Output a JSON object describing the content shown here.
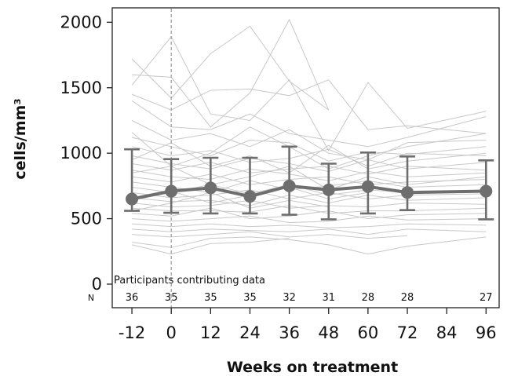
{
  "chart_data": {
    "type": "line",
    "xlabel": "Weeks on treatment",
    "ylabel": "cells/mm³",
    "xlim": [
      -18,
      100
    ],
    "ylim": [
      -180,
      2110
    ],
    "x_ticks": [
      -12,
      0,
      12,
      24,
      36,
      48,
      60,
      72,
      84,
      96
    ],
    "x_tick_labels": [
      "-12",
      "0",
      "12",
      "24",
      "36",
      "48",
      "60",
      "72",
      "84",
      "96"
    ],
    "y_ticks": [
      0,
      500,
      1000,
      1500,
      2000
    ],
    "y_tick_labels": [
      "0",
      "500",
      "1000",
      "1500",
      "2000"
    ],
    "reference_line_x": 0,
    "colors": {
      "mean": "#6e6e6e",
      "individual": "#c8c8c8",
      "reference": "#999999",
      "axis": "#222222"
    },
    "mean_series": {
      "x": [
        -12,
        0,
        12,
        24,
        36,
        48,
        60,
        72,
        96
      ],
      "y": [
        650,
        710,
        735,
        670,
        750,
        720,
        745,
        700,
        710
      ],
      "lower": [
        560,
        545,
        540,
        540,
        530,
        495,
        540,
        565,
        495
      ],
      "upper": [
        1030,
        955,
        965,
        965,
        1050,
        920,
        1005,
        975,
        945
      ]
    },
    "individual_series": [
      {
        "x": [
          -12,
          0,
          12,
          24,
          36,
          48
        ],
        "y": [
          1720,
          1420,
          1760,
          1970,
          1550,
          1330
        ]
      },
      {
        "x": [
          -12,
          0,
          12,
          24,
          36,
          48
        ],
        "y": [
          1600,
          1580,
          1200,
          1460,
          2020,
          1330
        ]
      },
      {
        "x": [
          -12,
          0,
          12,
          24,
          36,
          48,
          60,
          72,
          96
        ],
        "y": [
          1520,
          1890,
          1300,
          1250,
          1560,
          1020,
          1540,
          1190,
          1320
        ]
      },
      {
        "x": [
          -12,
          0,
          12,
          24,
          36,
          48,
          60,
          72,
          96
        ],
        "y": [
          1450,
          1330,
          1480,
          1490,
          1440,
          1560,
          1180,
          1210,
          1150
        ]
      },
      {
        "x": [
          -12,
          0,
          12,
          24,
          36,
          48,
          60,
          72,
          96
        ],
        "y": [
          1400,
          1200,
          1180,
          1300,
          1150,
          1100,
          1050,
          1120,
          1280
        ]
      },
      {
        "x": [
          -12,
          0,
          12,
          24,
          36,
          48,
          60,
          72,
          96
        ],
        "y": [
          1250,
          1100,
          1150,
          1050,
          1180,
          1000,
          950,
          1080,
          1100
        ]
      },
      {
        "x": [
          -12,
          0,
          12,
          24,
          36,
          48,
          60,
          72,
          96
        ],
        "y": [
          1120,
          1050,
          980,
          1100,
          1080,
          940,
          1010,
          990,
          1050
        ]
      },
      {
        "x": [
          -12,
          0,
          12,
          24,
          36,
          48,
          60,
          72,
          96
        ],
        "y": [
          1050,
          980,
          1020,
          930,
          960,
          1030,
          900,
          1000,
          980
        ]
      },
      {
        "x": [
          -12,
          0,
          12,
          24,
          36,
          48,
          60,
          72,
          96
        ],
        "y": [
          980,
          920,
          880,
          960,
          920,
          860,
          950,
          880,
          930
        ]
      },
      {
        "x": [
          -12,
          0,
          12,
          24,
          36,
          48,
          60,
          72,
          96
        ],
        "y": [
          920,
          870,
          930,
          850,
          880,
          900,
          840,
          900,
          870
        ]
      },
      {
        "x": [
          -12,
          0,
          12,
          24,
          36,
          48,
          60,
          72,
          96
        ],
        "y": [
          870,
          820,
          800,
          880,
          840,
          790,
          860,
          820,
          850
        ]
      },
      {
        "x": [
          -12,
          0,
          12,
          24,
          36,
          48,
          60,
          72,
          96
        ],
        "y": [
          820,
          780,
          840,
          760,
          800,
          820,
          760,
          780,
          800
        ]
      },
      {
        "x": [
          -12,
          0,
          12,
          24,
          36,
          48,
          60,
          72,
          96
        ],
        "y": [
          780,
          740,
          700,
          790,
          720,
          750,
          790,
          740,
          760
        ]
      },
      {
        "x": [
          -12,
          0,
          12,
          24,
          36,
          48,
          60,
          72,
          96
        ],
        "y": [
          740,
          700,
          760,
          690,
          760,
          680,
          720,
          700,
          720
        ]
      },
      {
        "x": [
          -12,
          0,
          12,
          24,
          36,
          48,
          60,
          72,
          96
        ],
        "y": [
          700,
          660,
          680,
          720,
          650,
          700,
          650,
          680,
          690
        ]
      },
      {
        "x": [
          -12,
          0,
          12,
          24,
          36,
          48,
          60,
          72,
          96
        ],
        "y": [
          660,
          630,
          640,
          600,
          680,
          620,
          680,
          640,
          660
        ]
      },
      {
        "x": [
          -12,
          0,
          12,
          24,
          36,
          48,
          60,
          72,
          96
        ],
        "y": [
          620,
          590,
          600,
          640,
          580,
          600,
          590,
          620,
          610
        ]
      },
      {
        "x": [
          -12,
          0,
          12,
          24,
          36,
          48,
          60,
          72,
          96
        ],
        "y": [
          580,
          560,
          560,
          550,
          600,
          540,
          560,
          560,
          580
        ]
      },
      {
        "x": [
          -12,
          0,
          12,
          24,
          36,
          48,
          60,
          72,
          96
        ],
        "y": [
          540,
          520,
          580,
          500,
          520,
          560,
          500,
          530,
          540
        ]
      },
      {
        "x": [
          -12,
          0,
          12,
          24,
          36,
          48,
          60,
          72,
          96
        ],
        "y": [
          500,
          480,
          500,
          520,
          470,
          480,
          520,
          490,
          500
        ]
      },
      {
        "x": [
          -12,
          0,
          12,
          24,
          36,
          48,
          60,
          72,
          96
        ],
        "y": [
          460,
          440,
          460,
          440,
          450,
          430,
          440,
          460,
          450
        ]
      },
      {
        "x": [
          -12,
          0,
          12,
          24,
          36,
          48,
          60,
          72,
          96
        ],
        "y": [
          420,
          400,
          420,
          410,
          400,
          420,
          380,
          420,
          400
        ]
      },
      {
        "x": [
          -12,
          0,
          12,
          24,
          36,
          48,
          60,
          72
        ],
        "y": [
          380,
          360,
          380,
          400,
          360,
          380,
          350,
          370
        ]
      },
      {
        "x": [
          -12,
          0,
          12,
          24,
          36,
          48,
          60,
          72,
          96
        ],
        "y": [
          320,
          280,
          350,
          360,
          340,
          300,
          230,
          290,
          360
        ]
      },
      {
        "x": [
          -12,
          0,
          12,
          24,
          36
        ],
        "y": [
          300,
          230,
          310,
          320,
          350
        ]
      },
      {
        "x": [
          -12,
          0,
          12,
          24,
          36,
          48,
          60,
          72,
          96
        ],
        "y": [
          850,
          900,
          760,
          820,
          900,
          720,
          820,
          760,
          820
        ]
      },
      {
        "x": [
          -12,
          0,
          12,
          24,
          36,
          48,
          60,
          72,
          96
        ],
        "y": [
          950,
          1080,
          900,
          980,
          850,
          1060,
          880,
          940,
          1000
        ]
      },
      {
        "x": [
          -12,
          0,
          12,
          24,
          36,
          48,
          60
        ],
        "y": [
          640,
          710,
          620,
          680,
          740,
          650,
          700
        ]
      },
      {
        "x": [
          -12,
          0,
          12,
          24,
          36,
          48
        ],
        "y": [
          560,
          620,
          700,
          580,
          640,
          590
        ]
      },
      {
        "x": [
          -12,
          0,
          12,
          24,
          36,
          48,
          60,
          72,
          96
        ],
        "y": [
          1160,
          900,
          1000,
          1200,
          1050,
          880,
          980,
          1050,
          1150
        ]
      }
    ],
    "annotation": "Participants contributing data",
    "n_label": "N",
    "n_counts": {
      "x": [
        -12,
        0,
        12,
        24,
        36,
        48,
        60,
        72,
        96
      ],
      "labels": [
        "36",
        "35",
        "35",
        "35",
        "32",
        "31",
        "28",
        "28",
        "27"
      ]
    }
  }
}
